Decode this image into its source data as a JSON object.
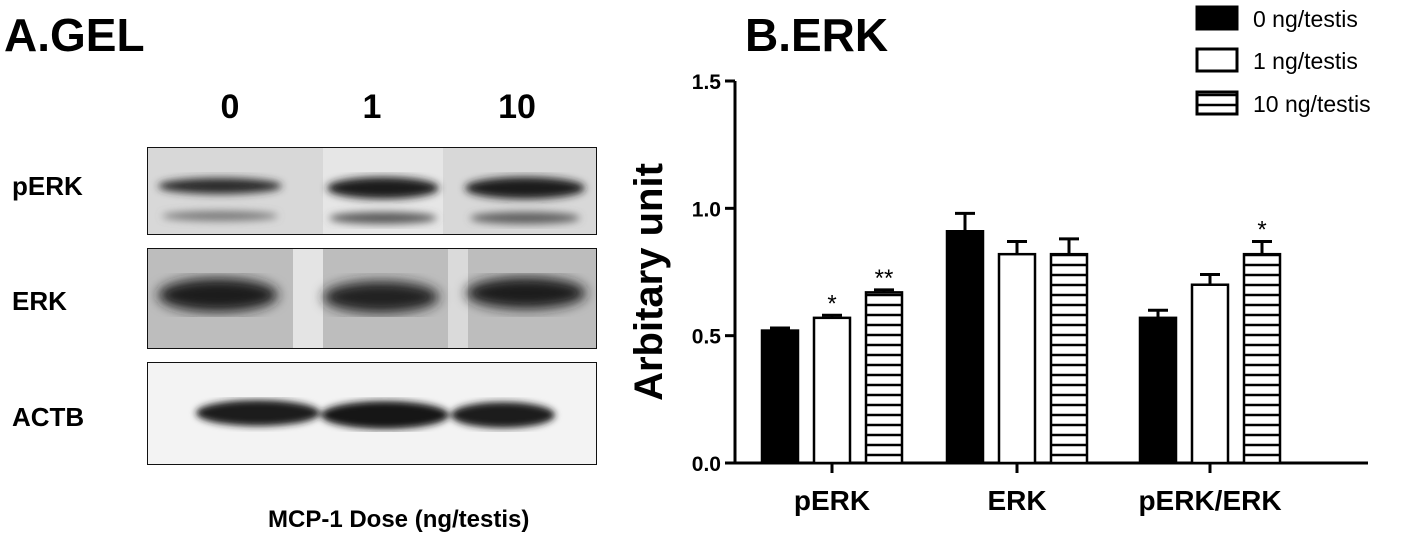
{
  "panel_a": {
    "title": "A.GEL",
    "lanes": [
      "0",
      "1",
      "10"
    ],
    "blots": [
      {
        "label": "pERK"
      },
      {
        "label": "ERK"
      },
      {
        "label": "ACTB"
      }
    ],
    "xlabel": "MCP-1 Dose (ng/testis)"
  },
  "chart_data": {
    "type": "bar",
    "title": "B.ERK",
    "categories": [
      "pERK",
      "ERK",
      "pERK/ERK"
    ],
    "ylabel": "Arbitary unit",
    "ylim": [
      0,
      1.5
    ],
    "yticks": [
      "0.0",
      "0.5",
      "1.0",
      "1.5"
    ],
    "series": [
      {
        "name": "0 ng/testis",
        "style": "solid-black",
        "values": [
          0.52,
          0.91,
          0.57
        ],
        "errors": [
          0.01,
          0.07,
          0.03
        ],
        "annotations": [
          "",
          "",
          ""
        ]
      },
      {
        "name": "1 ng/testis",
        "style": "white",
        "values": [
          0.57,
          0.82,
          0.7
        ],
        "errors": [
          0.01,
          0.05,
          0.04
        ],
        "annotations": [
          "*",
          "",
          ""
        ]
      },
      {
        "name": "10 ng/testis",
        "style": "horizontal-stripes",
        "values": [
          0.67,
          0.82,
          0.82
        ],
        "errors": [
          0.01,
          0.06,
          0.05
        ],
        "annotations": [
          "**",
          "",
          "*"
        ]
      }
    ],
    "legend_position": "top-right",
    "grid": false
  }
}
